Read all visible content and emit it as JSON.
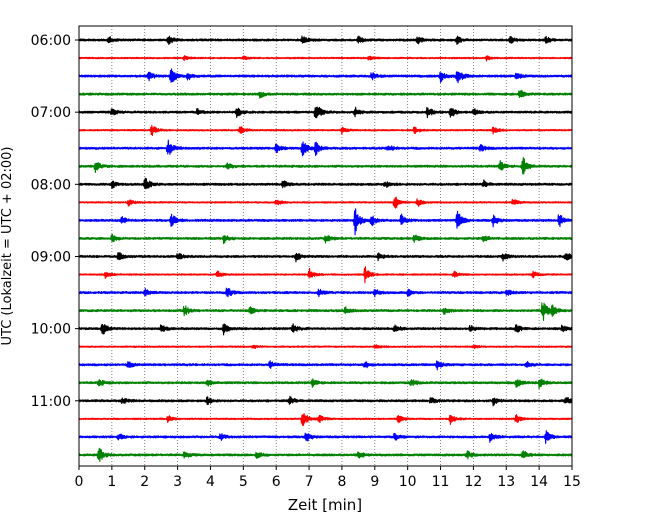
{
  "chart_data": {
    "type": "line",
    "title": "",
    "xlabel": "Zeit  [min]",
    "ylabel": "UTC (Lokalzeit = UTC + 02:00)",
    "xlim": [
      0,
      15
    ],
    "x_ticks": [
      "0",
      "1",
      "2",
      "3",
      "4",
      "5",
      "6",
      "7",
      "8",
      "9",
      "10",
      "11",
      "12",
      "13",
      "14",
      "15"
    ],
    "y_ticks": [
      "06:00",
      "07:00",
      "08:00",
      "09:00",
      "10:00",
      "11:00"
    ],
    "grid": "vertical dotted at each minute",
    "legend": "none",
    "trace_colors": [
      "#000000",
      "#ff0000",
      "#0000ff",
      "#008000"
    ],
    "traces": [
      {
        "start": "06:00",
        "events": [
          [
            0.9,
            0.4
          ],
          [
            2.7,
            0.6
          ],
          [
            6.8,
            0.5
          ],
          [
            8.5,
            0.4
          ],
          [
            10.3,
            0.4
          ],
          [
            11.5,
            0.4
          ],
          [
            13.1,
            0.5
          ],
          [
            14.2,
            0.4
          ]
        ]
      },
      {
        "start": "06:15",
        "events": [
          [
            3.2,
            0.25
          ],
          [
            5.0,
            0.2
          ],
          [
            8.8,
            0.25
          ],
          [
            12.4,
            0.25
          ]
        ]
      },
      {
        "start": "06:30",
        "events": [
          [
            2.1,
            0.6
          ],
          [
            2.8,
            1.0
          ],
          [
            3.3,
            0.5
          ],
          [
            8.9,
            0.4
          ],
          [
            11.0,
            0.6
          ],
          [
            11.5,
            1.1
          ],
          [
            13.3,
            0.4
          ]
        ]
      },
      {
        "start": "06:45",
        "events": [
          [
            5.5,
            0.4
          ],
          [
            13.4,
            0.5
          ]
        ]
      },
      {
        "start": "07:00",
        "events": [
          [
            1.0,
            0.4
          ],
          [
            3.6,
            0.4
          ],
          [
            4.8,
            0.5
          ],
          [
            7.2,
            1.1
          ],
          [
            8.4,
            0.5
          ],
          [
            10.6,
            0.6
          ],
          [
            11.3,
            0.7
          ],
          [
            12.0,
            0.4
          ]
        ]
      },
      {
        "start": "07:15",
        "events": [
          [
            2.2,
            0.7
          ],
          [
            4.9,
            0.6
          ],
          [
            8.0,
            0.4
          ],
          [
            10.2,
            0.4
          ],
          [
            12.6,
            0.4
          ]
        ]
      },
      {
        "start": "07:30",
        "events": [
          [
            2.7,
            1.0
          ],
          [
            6.0,
            0.5
          ],
          [
            6.8,
            1.0
          ],
          [
            7.2,
            0.7
          ],
          [
            9.4,
            0.4
          ],
          [
            12.2,
            0.4
          ]
        ]
      },
      {
        "start": "07:45",
        "events": [
          [
            0.5,
            0.6
          ],
          [
            4.5,
            0.4
          ],
          [
            12.8,
            0.6
          ],
          [
            13.5,
            1.1
          ]
        ]
      },
      {
        "start": "08:00",
        "events": [
          [
            1.0,
            0.4
          ],
          [
            2.0,
            0.9
          ],
          [
            6.2,
            0.4
          ],
          [
            9.3,
            0.4
          ],
          [
            12.3,
            0.4
          ]
        ]
      },
      {
        "start": "08:15",
        "events": [
          [
            1.5,
            0.4
          ],
          [
            6.0,
            0.4
          ],
          [
            9.6,
            0.9
          ],
          [
            10.3,
            0.5
          ],
          [
            13.2,
            0.4
          ]
        ]
      },
      {
        "start": "08:30",
        "events": [
          [
            1.3,
            0.4
          ],
          [
            2.8,
            0.9
          ],
          [
            8.4,
            1.5
          ],
          [
            8.9,
            0.6
          ],
          [
            9.8,
            0.7
          ],
          [
            11.5,
            1.2
          ],
          [
            12.6,
            0.6
          ],
          [
            14.6,
            0.8
          ]
        ]
      },
      {
        "start": "08:45",
        "events": [
          [
            1.0,
            0.4
          ],
          [
            4.4,
            0.5
          ],
          [
            7.5,
            0.4
          ],
          [
            10.2,
            0.4
          ],
          [
            12.3,
            0.4
          ]
        ]
      },
      {
        "start": "09:00",
        "events": [
          [
            1.2,
            0.5
          ],
          [
            3.0,
            0.4
          ],
          [
            6.6,
            0.5
          ],
          [
            9.1,
            0.4
          ],
          [
            12.9,
            0.4
          ],
          [
            14.8,
            0.6
          ]
        ]
      },
      {
        "start": "09:15",
        "events": [
          [
            0.8,
            0.4
          ],
          [
            4.2,
            0.4
          ],
          [
            7.0,
            0.7
          ],
          [
            8.7,
            0.9
          ],
          [
            11.4,
            0.4
          ],
          [
            13.8,
            0.4
          ]
        ]
      },
      {
        "start": "09:30",
        "events": [
          [
            2.0,
            0.4
          ],
          [
            4.5,
            0.6
          ],
          [
            7.3,
            0.4
          ],
          [
            9.0,
            0.4
          ],
          [
            10.0,
            0.4
          ],
          [
            13.0,
            0.4
          ]
        ]
      },
      {
        "start": "09:45",
        "events": [
          [
            3.2,
            0.6
          ],
          [
            5.2,
            0.4
          ],
          [
            8.1,
            0.4
          ],
          [
            11.1,
            0.4
          ],
          [
            14.1,
            1.3
          ],
          [
            14.4,
            0.5
          ]
        ]
      },
      {
        "start": "10:00",
        "events": [
          [
            0.7,
            0.8
          ],
          [
            2.5,
            0.5
          ],
          [
            4.4,
            0.7
          ],
          [
            6.5,
            0.5
          ],
          [
            9.6,
            0.5
          ],
          [
            11.9,
            0.4
          ],
          [
            13.3,
            0.5
          ],
          [
            14.7,
            0.4
          ]
        ]
      },
      {
        "start": "10:15",
        "events": [
          [
            5.3,
            0.2
          ],
          [
            9.0,
            0.25
          ],
          [
            12.0,
            0.2
          ]
        ]
      },
      {
        "start": "10:30",
        "events": [
          [
            1.5,
            0.4
          ],
          [
            5.8,
            0.4
          ],
          [
            8.7,
            0.4
          ],
          [
            10.9,
            0.5
          ],
          [
            13.6,
            0.4
          ]
        ]
      },
      {
        "start": "10:45",
        "events": [
          [
            0.6,
            0.4
          ],
          [
            3.9,
            0.4
          ],
          [
            7.1,
            0.4
          ],
          [
            10.1,
            0.4
          ],
          [
            13.3,
            0.5
          ],
          [
            14.0,
            0.6
          ]
        ]
      },
      {
        "start": "11:00",
        "events": [
          [
            1.3,
            0.4
          ],
          [
            3.9,
            0.4
          ],
          [
            6.4,
            0.5
          ],
          [
            10.7,
            0.4
          ],
          [
            12.6,
            0.5
          ],
          [
            14.8,
            0.5
          ]
        ]
      },
      {
        "start": "11:15",
        "events": [
          [
            2.7,
            0.4
          ],
          [
            6.8,
            1.2
          ],
          [
            7.3,
            0.5
          ],
          [
            9.7,
            0.5
          ],
          [
            11.3,
            0.6
          ],
          [
            13.3,
            0.5
          ]
        ]
      },
      {
        "start": "11:30",
        "events": [
          [
            1.2,
            0.4
          ],
          [
            4.3,
            0.4
          ],
          [
            6.9,
            0.6
          ],
          [
            9.6,
            0.4
          ],
          [
            12.5,
            0.5
          ],
          [
            14.2,
            0.7
          ]
        ]
      },
      {
        "start": "11:45",
        "events": [
          [
            0.6,
            0.9
          ],
          [
            3.2,
            0.4
          ],
          [
            5.4,
            0.4
          ],
          [
            8.5,
            0.4
          ],
          [
            11.8,
            0.5
          ],
          [
            13.5,
            0.5
          ]
        ]
      }
    ]
  }
}
